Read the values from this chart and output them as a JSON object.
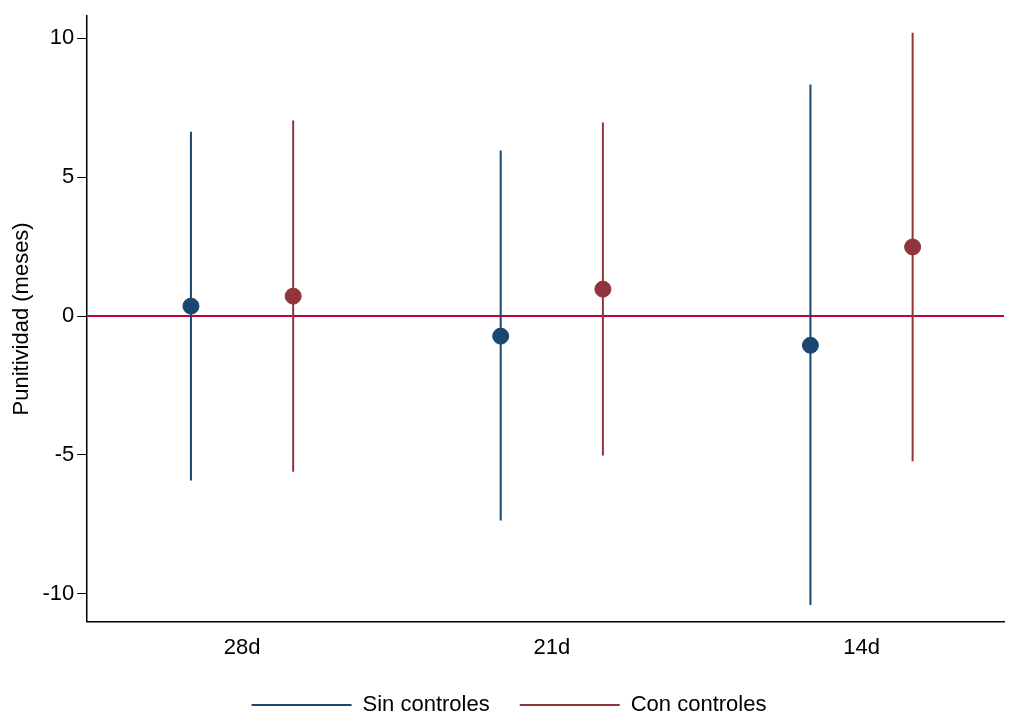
{
  "chart_data": {
    "type": "scatter",
    "ylabel": "Punitividad (meses)",
    "categories": [
      "28d",
      "21d",
      "14d"
    ],
    "series": [
      {
        "name": "Sin controles",
        "color": "#1a476f",
        "values": [
          0.36,
          -0.72,
          -1.05
        ],
        "errors": [
          [
            -5.92,
            6.64
          ],
          [
            -7.36,
            5.96
          ],
          [
            -10.4,
            8.34
          ]
        ]
      },
      {
        "name": "Con controles",
        "color": "#90353b",
        "values": [
          0.72,
          0.97,
          2.49
        ],
        "errors": [
          [
            -5.6,
            7.04
          ],
          [
            -5.02,
            6.97
          ],
          [
            -5.23,
            10.2
          ]
        ]
      }
    ],
    "ylim": [
      -11,
      10.8
    ],
    "yticks": [
      -10,
      -5,
      0,
      5,
      10
    ],
    "ref_lines": [
      {
        "axis": "y",
        "value": 0,
        "color": "#c10534"
      }
    ],
    "legend": "bottom",
    "marker": "circle",
    "grid": false
  }
}
